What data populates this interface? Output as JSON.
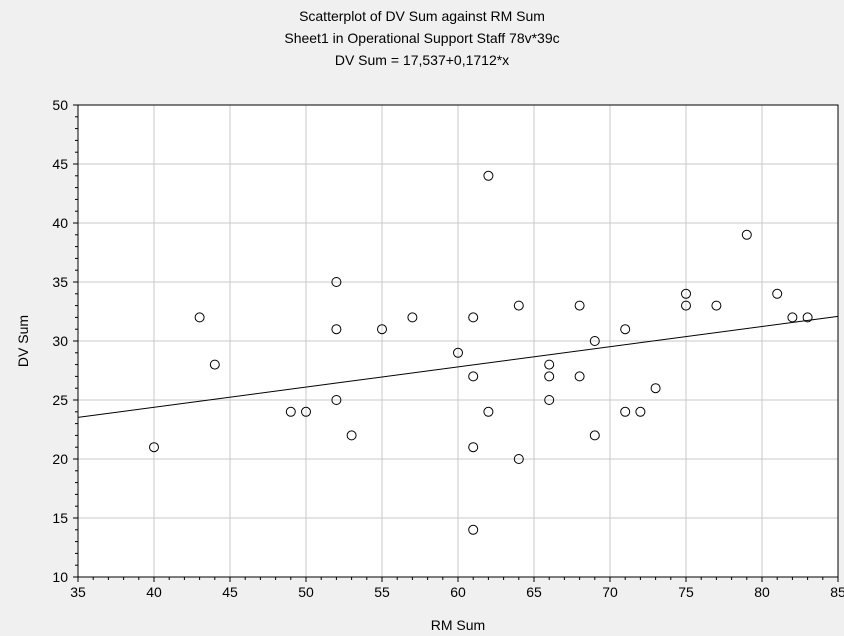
{
  "chart_data": {
    "type": "scatter",
    "title_lines": [
      "Scatterplot of DV Sum against RM Sum",
      "Sheet1 in Operational Support Staff 78v*39c",
      "DV Sum = 17,537+0,1712*x"
    ],
    "xlabel": "RM Sum",
    "ylabel": "DV Sum",
    "xlim": [
      35,
      85
    ],
    "ylim": [
      10,
      50
    ],
    "x_ticks": [
      "35",
      "40",
      "45",
      "50",
      "55",
      "60",
      "65",
      "70",
      "75",
      "80",
      "85"
    ],
    "y_ticks": [
      "10",
      "15",
      "20",
      "25",
      "30",
      "35",
      "40",
      "45",
      "50"
    ],
    "grid": true,
    "regression": {
      "intercept": 17.537,
      "slope": 0.1712
    },
    "points": [
      {
        "x": 40,
        "y": 21
      },
      {
        "x": 43,
        "y": 32
      },
      {
        "x": 44,
        "y": 28
      },
      {
        "x": 49,
        "y": 24
      },
      {
        "x": 50,
        "y": 24
      },
      {
        "x": 52,
        "y": 35
      },
      {
        "x": 52,
        "y": 31
      },
      {
        "x": 52,
        "y": 25
      },
      {
        "x": 53,
        "y": 22
      },
      {
        "x": 55,
        "y": 31
      },
      {
        "x": 57,
        "y": 32
      },
      {
        "x": 60,
        "y": 29
      },
      {
        "x": 61,
        "y": 32
      },
      {
        "x": 61,
        "y": 27
      },
      {
        "x": 61,
        "y": 21
      },
      {
        "x": 61,
        "y": 14
      },
      {
        "x": 62,
        "y": 44
      },
      {
        "x": 62,
        "y": 24
      },
      {
        "x": 64,
        "y": 33
      },
      {
        "x": 64,
        "y": 20
      },
      {
        "x": 66,
        "y": 28
      },
      {
        "x": 66,
        "y": 27
      },
      {
        "x": 66,
        "y": 25
      },
      {
        "x": 68,
        "y": 33
      },
      {
        "x": 68,
        "y": 27
      },
      {
        "x": 69,
        "y": 30
      },
      {
        "x": 69,
        "y": 22
      },
      {
        "x": 71,
        "y": 31
      },
      {
        "x": 71,
        "y": 24
      },
      {
        "x": 72,
        "y": 24
      },
      {
        "x": 73,
        "y": 26
      },
      {
        "x": 75,
        "y": 34
      },
      {
        "x": 75,
        "y": 33
      },
      {
        "x": 77,
        "y": 33
      },
      {
        "x": 79,
        "y": 39
      },
      {
        "x": 81,
        "y": 34
      },
      {
        "x": 82,
        "y": 32
      },
      {
        "x": 83,
        "y": 32
      }
    ],
    "colors": {
      "background": "#f0f0f0",
      "plot_area": "#ffffff",
      "grid": "#c8c8c8",
      "marker": "#000000",
      "line": "#000000"
    }
  }
}
